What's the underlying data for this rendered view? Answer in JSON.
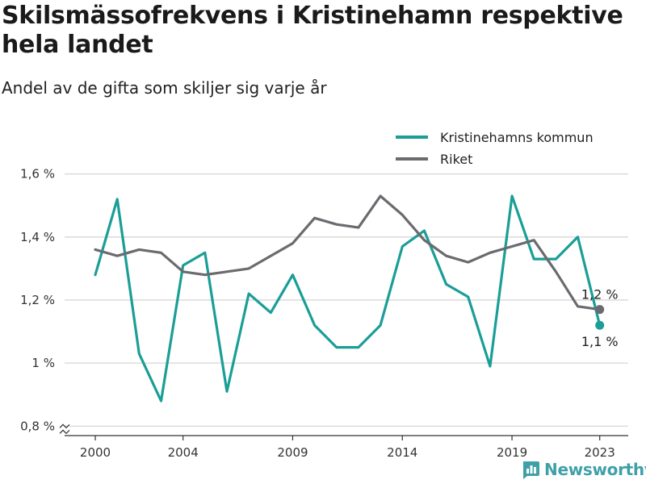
{
  "chart_data": {
    "type": "line",
    "title": "Skilsmässofrekvens i Kristinehamn respektive hela landet",
    "subtitle": "Andel av de gifta som skiljer sig varje år",
    "x": [
      2000,
      2001,
      2002,
      2003,
      2004,
      2005,
      2006,
      2007,
      2008,
      2009,
      2010,
      2011,
      2012,
      2013,
      2014,
      2015,
      2016,
      2017,
      2018,
      2019,
      2020,
      2021,
      2022,
      2023
    ],
    "x_ticks": [
      2000,
      2004,
      2009,
      2014,
      2019,
      2023
    ],
    "y_ticks": [
      0.8,
      1.0,
      1.2,
      1.4,
      1.6
    ],
    "y_tick_labels": [
      "0,8 %",
      "1 %",
      "1,2 %",
      "1,4 %",
      "1,6 %"
    ],
    "ylim": [
      0.77,
      1.64
    ],
    "grid": true,
    "legend_position": "top-right",
    "series": [
      {
        "name": "Kristinehamns kommun",
        "color": "#1a9e96",
        "values": [
          1.28,
          1.52,
          1.03,
          0.88,
          1.31,
          1.35,
          0.91,
          1.22,
          1.16,
          1.28,
          1.12,
          1.05,
          1.05,
          1.12,
          1.37,
          1.42,
          1.25,
          1.21,
          0.99,
          1.53,
          1.33,
          1.33,
          1.4,
          1.12
        ],
        "end_label": "1,1 %"
      },
      {
        "name": "Riket",
        "color": "#6b6a6f",
        "values": [
          1.36,
          1.34,
          1.36,
          1.35,
          1.29,
          1.28,
          1.29,
          1.3,
          1.34,
          1.38,
          1.46,
          1.44,
          1.43,
          1.53,
          1.47,
          1.39,
          1.34,
          1.32,
          1.35,
          1.37,
          1.39,
          1.29,
          1.18,
          1.17
        ],
        "end_label": "1,2 %"
      }
    ]
  },
  "brand": {
    "name": "Newsworthy",
    "color": "#3fa0a8"
  }
}
